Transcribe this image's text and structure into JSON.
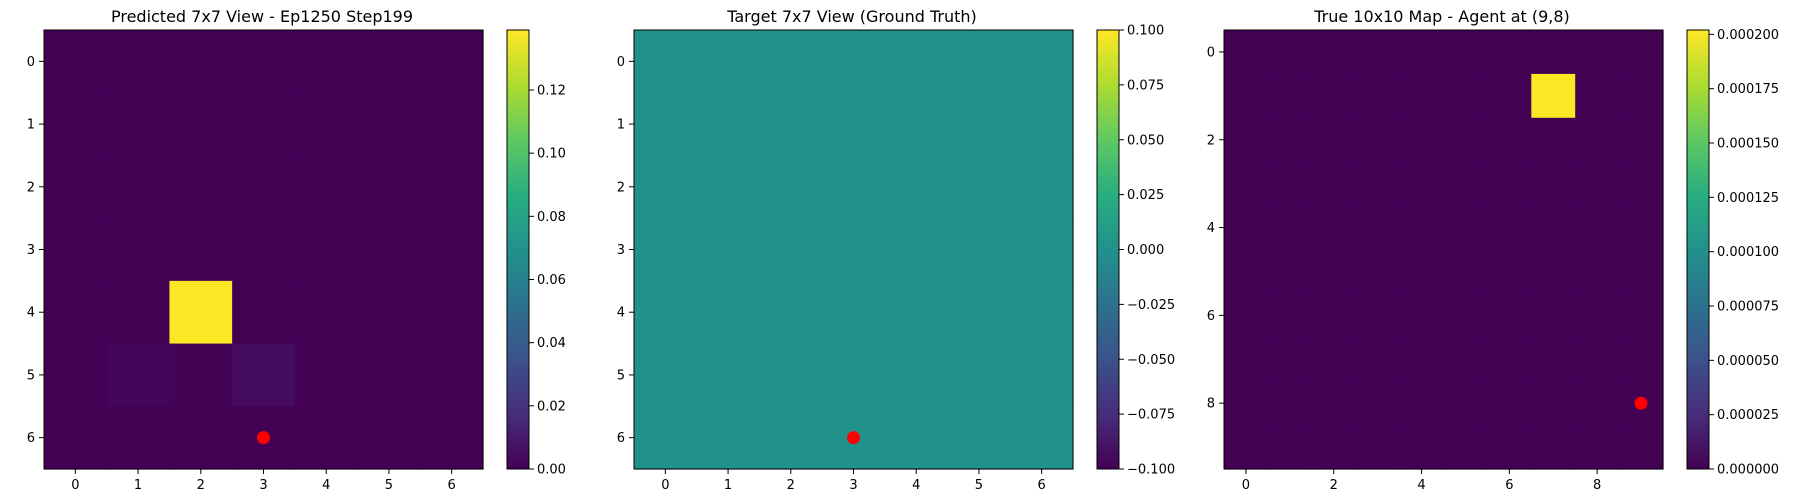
{
  "chart_data": [
    {
      "type": "heatmap",
      "title": "Predicted 7x7 View - Ep1250 Step199",
      "rows": 7,
      "cols": 7,
      "x_ticks": [
        0,
        1,
        2,
        3,
        4,
        5,
        6
      ],
      "y_ticks": [
        0,
        1,
        2,
        3,
        4,
        5,
        6
      ],
      "values": [
        [
          0.0,
          0.0,
          0.0,
          0.0,
          0.0,
          0.0,
          0.0
        ],
        [
          0.0,
          0.0,
          0.0,
          0.0,
          0.0,
          0.0,
          0.0
        ],
        [
          0.0,
          0.0,
          0.0,
          0.0,
          0.0,
          0.0,
          0.0
        ],
        [
          0.0,
          0.0,
          0.0,
          0.001,
          0.0,
          0.0,
          0.0
        ],
        [
          0.0,
          0.0,
          0.139,
          0.0,
          0.0,
          0.0,
          0.0
        ],
        [
          0.0,
          0.002,
          0.001,
          0.004,
          0.0,
          0.0,
          0.0
        ],
        [
          0.0,
          0.0,
          0.0,
          0.0,
          0.0,
          0.0,
          0.0
        ]
      ],
      "colormap": "viridis",
      "vmin": 0.0,
      "vmax": 0.139,
      "colorbar_ticks": [
        "0.00",
        "0.02",
        "0.04",
        "0.06",
        "0.08",
        "0.10",
        "0.12"
      ],
      "colorbar_tick_values": [
        0.0,
        0.02,
        0.04,
        0.06,
        0.08,
        0.1,
        0.12
      ],
      "marker": {
        "x": 3,
        "y": 6,
        "color": "#ff0000"
      }
    },
    {
      "type": "heatmap",
      "title": "Target 7x7 View (Ground Truth)",
      "rows": 7,
      "cols": 7,
      "x_ticks": [
        0,
        1,
        2,
        3,
        4,
        5,
        6
      ],
      "y_ticks": [
        0,
        1,
        2,
        3,
        4,
        5,
        6
      ],
      "values": [
        [
          0,
          0,
          0,
          0,
          0,
          0,
          0
        ],
        [
          0,
          0,
          0,
          0,
          0,
          0,
          0
        ],
        [
          0,
          0,
          0,
          0,
          0,
          0,
          0
        ],
        [
          0,
          0,
          0,
          0,
          0,
          0,
          0
        ],
        [
          0,
          0,
          0,
          0,
          0,
          0,
          0
        ],
        [
          0,
          0,
          0,
          0,
          0,
          0,
          0
        ],
        [
          0,
          0,
          0,
          0,
          0,
          0,
          0
        ]
      ],
      "colormap": "viridis",
      "vmin": -0.1,
      "vmax": 0.1,
      "colorbar_ticks": [
        "−0.100",
        "−0.075",
        "−0.050",
        "−0.025",
        "0.000",
        "0.025",
        "0.050",
        "0.075",
        "0.100"
      ],
      "colorbar_tick_values": [
        -0.1,
        -0.075,
        -0.05,
        -0.025,
        0.0,
        0.025,
        0.05,
        0.075,
        0.1
      ],
      "marker": {
        "x": 3,
        "y": 6,
        "color": "#ff0000"
      }
    },
    {
      "type": "heatmap",
      "title": "True 10x10 Map - Agent at (9,8)",
      "rows": 10,
      "cols": 10,
      "x_ticks": [
        0,
        2,
        4,
        6,
        8
      ],
      "y_ticks": [
        0,
        2,
        4,
        6,
        8
      ],
      "values": [
        [
          0,
          0,
          0,
          0,
          0,
          0,
          0,
          0,
          0,
          0
        ],
        [
          0,
          0,
          0,
          0,
          0,
          0,
          0,
          0.000202,
          0,
          0
        ],
        [
          0,
          0,
          0,
          0,
          0,
          0,
          0,
          0,
          0,
          0
        ],
        [
          0,
          0,
          0,
          0,
          0,
          0,
          0,
          0,
          0,
          0
        ],
        [
          0,
          0,
          0,
          0,
          0,
          0,
          0,
          0,
          0,
          0
        ],
        [
          0,
          0,
          0,
          0,
          0,
          0,
          0,
          0,
          0,
          0
        ],
        [
          0,
          0,
          0,
          0,
          0,
          0,
          0,
          0,
          0,
          0
        ],
        [
          0,
          0,
          0,
          0,
          0,
          0,
          0,
          0,
          0,
          0
        ],
        [
          0,
          0,
          0,
          0,
          0,
          0,
          0,
          0,
          0,
          0
        ],
        [
          0,
          0,
          0,
          0,
          0,
          0,
          0,
          0,
          0,
          0
        ]
      ],
      "colormap": "viridis",
      "vmin": 0.0,
      "vmax": 0.000202,
      "colorbar_ticks": [
        "0.000000",
        "0.000025",
        "0.000050",
        "0.000075",
        "0.000100",
        "0.000125",
        "0.000150",
        "0.000175",
        "0.000200"
      ],
      "colorbar_tick_values": [
        0.0,
        2.5e-05,
        5e-05,
        7.5e-05,
        0.0001,
        0.000125,
        0.00015,
        0.000175,
        0.0002
      ],
      "marker": {
        "x": 9,
        "y": 8,
        "color": "#ff0000"
      }
    }
  ]
}
